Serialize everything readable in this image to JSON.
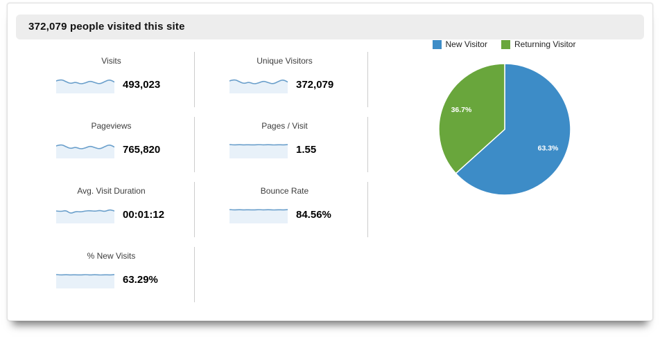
{
  "header": {
    "title": "372,079 people visited this site"
  },
  "metrics": [
    {
      "label": "Visits",
      "value": "493,023",
      "spark": "wavy"
    },
    {
      "label": "Unique Visitors",
      "value": "372,079",
      "spark": "wavy"
    },
    {
      "label": "Pageviews",
      "value": "765,820",
      "spark": "wavy"
    },
    {
      "label": "Pages / Visit",
      "value": "1.55",
      "spark": "flat"
    },
    {
      "label": "Avg. Visit Duration",
      "value": "00:01:12",
      "spark": "jagged"
    },
    {
      "label": "Bounce Rate",
      "value": "84.56%",
      "spark": "flat"
    },
    {
      "label": "% New Visits",
      "value": "63.29%",
      "spark": "flat"
    }
  ],
  "chart_data": {
    "type": "pie",
    "labels": [
      "New Visitor",
      "Returning Visitor"
    ],
    "values": [
      63.3,
      36.7
    ],
    "data_labels": [
      "63.3%",
      "36.7%"
    ],
    "colors": [
      "#3d8cc7",
      "#69a63c"
    ],
    "legend_position": "top",
    "start_angle_deg": -90,
    "direction": "clockwise"
  },
  "style_colors": {
    "header_bg": "#ededed",
    "divider": "#cccccc",
    "spark_line": "#6a9fcb",
    "spark_fill": "#e8f1f9",
    "pie_label_text": "#ffffff"
  }
}
